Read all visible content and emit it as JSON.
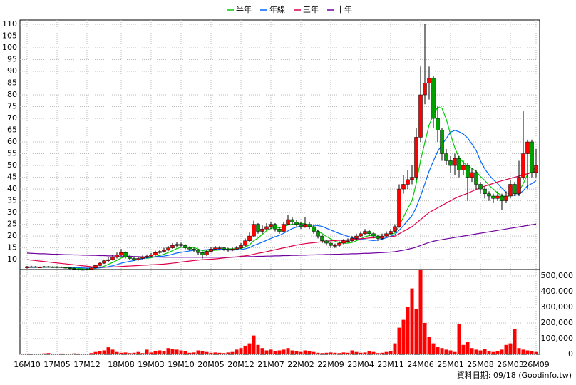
{
  "chart_data": {
    "type": "candlestick",
    "categories": [
      "16M10",
      null,
      null,
      null,
      null,
      null,
      null,
      "17M05",
      null,
      null,
      null,
      null,
      null,
      null,
      "17M12",
      null,
      null,
      null,
      null,
      null,
      null,
      null,
      "18M08",
      null,
      null,
      null,
      null,
      null,
      null,
      "19M03",
      null,
      null,
      null,
      null,
      null,
      null,
      "19M10",
      null,
      null,
      null,
      null,
      null,
      null,
      "20M05",
      null,
      null,
      null,
      null,
      null,
      null,
      "20M12",
      null,
      null,
      null,
      null,
      null,
      null,
      "21M07",
      null,
      null,
      null,
      null,
      null,
      null,
      "22M02",
      null,
      null,
      null,
      null,
      null,
      null,
      "22M09",
      null,
      null,
      null,
      null,
      null,
      null,
      "23M04",
      null,
      null,
      null,
      null,
      null,
      null,
      "23M11",
      null,
      null,
      null,
      null,
      null,
      null,
      "24M06",
      null,
      null,
      null,
      null,
      null,
      null,
      "25M01",
      null,
      null,
      null,
      null,
      null,
      null,
      "25M08",
      null,
      null,
      null,
      null,
      null,
      null,
      "26M03",
      null,
      null,
      null,
      null,
      null,
      "26M09"
    ],
    "open": [
      6.5,
      7,
      7,
      6.8,
      6.8,
      7,
      6.9,
      6.8,
      6.9,
      6.7,
      6.5,
      6.3,
      6,
      5.8,
      5.8,
      5.9,
      6.5,
      7.5,
      8.5,
      9.5,
      10,
      11,
      12,
      13,
      11,
      10.5,
      10,
      10.5,
      11,
      11.5,
      12,
      13,
      13.5,
      14,
      15,
      16,
      16.5,
      16,
      15,
      14.5,
      14,
      13,
      12,
      13.5,
      14.5,
      15,
      15,
      14.5,
      14,
      14.5,
      15,
      16,
      18,
      20,
      25,
      22,
      23,
      24,
      25,
      23,
      22,
      25,
      27,
      26,
      25,
      24,
      25,
      24,
      22,
      20,
      18,
      17,
      16,
      16,
      17,
      18,
      18,
      19,
      20,
      21,
      22,
      21,
      20,
      19,
      20,
      21,
      22,
      24,
      40,
      42,
      44,
      45,
      62,
      80,
      85,
      87,
      70,
      65,
      55,
      52,
      50,
      53,
      48,
      50,
      45,
      47,
      42,
      40,
      38,
      37,
      36,
      37,
      35,
      37,
      42,
      38,
      45,
      55,
      60,
      47
    ],
    "high": [
      7.3,
      7.4,
      7.3,
      7.1,
      7.3,
      7.3,
      7.2,
      7.2,
      7.1,
      7,
      6.8,
      6.6,
      6.2,
      6.2,
      6.3,
      6.9,
      7.9,
      9,
      10,
      11,
      12,
      13,
      14.5,
      13.5,
      11.8,
      11,
      11.2,
      11.8,
      12.2,
      12.8,
      13.8,
      14.2,
      15,
      15.8,
      17,
      17.5,
      17.2,
      16.5,
      15.6,
      15,
      14.5,
      13.5,
      14,
      15.2,
      15.8,
      15.8,
      15.5,
      15,
      15.2,
      15.8,
      17,
      19,
      21.5,
      26.5,
      25.5,
      24.5,
      25.5,
      26,
      25.5,
      24,
      26,
      29,
      28,
      27,
      25.8,
      28,
      25.8,
      24.5,
      22.5,
      20.5,
      18.5,
      17.5,
      16.8,
      17.8,
      18.8,
      19,
      20,
      21,
      22,
      23,
      22.5,
      21.5,
      20.5,
      21,
      22,
      23,
      25,
      42,
      46,
      48,
      50,
      66,
      92,
      110,
      92,
      88,
      75,
      66,
      57,
      54,
      55,
      54,
      52,
      51,
      49,
      48,
      43,
      41,
      39,
      38,
      39,
      38,
      39,
      44,
      43,
      52,
      73,
      61,
      61,
      57
    ],
    "low": [
      6.2,
      6.7,
      6.5,
      6.5,
      6.6,
      6.6,
      6.5,
      6.5,
      6.4,
      6.2,
      6,
      5.7,
      5.4,
      5.5,
      5.5,
      5.7,
      6.3,
      7.2,
      8.2,
      9,
      9.6,
      10.5,
      11.5,
      10.5,
      9.8,
      9.5,
      9.6,
      10.2,
      10.6,
      11,
      11.6,
      12.5,
      13,
      13.6,
      14.6,
      15.5,
      15.2,
      14.4,
      13.8,
      13.4,
      12,
      10.5,
      11.5,
      13,
      14,
      14.3,
      13.8,
      13.4,
      13.6,
      14,
      14.6,
      15.5,
      17.5,
      19.5,
      21,
      21,
      22.5,
      23,
      22,
      21,
      21.5,
      24.5,
      25,
      24,
      23,
      23.5,
      23,
      21,
      19,
      17,
      16,
      15,
      15,
      15.5,
      16.5,
      17.2,
      17.5,
      18.5,
      19.5,
      20.5,
      20,
      19,
      18,
      18.5,
      19.5,
      20.5,
      21.5,
      23.5,
      38,
      40,
      42,
      44,
      60,
      76,
      78,
      66,
      60,
      52,
      50,
      47,
      46,
      45,
      46,
      35,
      43,
      40,
      38,
      36,
      35,
      34,
      35,
      31,
      34,
      36,
      37,
      37,
      44,
      40,
      45,
      45
    ],
    "close": [
      7,
      7,
      6.8,
      6.8,
      7,
      6.9,
      6.8,
      6.9,
      6.7,
      6.5,
      6.3,
      6,
      5.8,
      5.8,
      5.9,
      6.5,
      7.5,
      8.5,
      9.5,
      10,
      11,
      12,
      13,
      11,
      10.5,
      10,
      10.5,
      11,
      11.5,
      12,
      13,
      13.5,
      14,
      15,
      16,
      16.5,
      16,
      15,
      14.5,
      14,
      13,
      12,
      13.5,
      14.5,
      15,
      15,
      14.5,
      14,
      14.5,
      15,
      16,
      18,
      20,
      25,
      22,
      23,
      24,
      25,
      23,
      22,
      25,
      27,
      26,
      25,
      24,
      25,
      24,
      22,
      20,
      18,
      17,
      16,
      16,
      17,
      18,
      18,
      19,
      20,
      21,
      22,
      21,
      20,
      19,
      20,
      21,
      22,
      24,
      40,
      42,
      44,
      45,
      62,
      80,
      85,
      87,
      70,
      65,
      55,
      52,
      50,
      53,
      48,
      50,
      45,
      47,
      42,
      40,
      38,
      37,
      36,
      37,
      35,
      37,
      42,
      38,
      45,
      55,
      60,
      47,
      50
    ],
    "up_color": "#ff0000",
    "down_color": "#00a000",
    "ylim": [
      5.8,
      111.8
    ],
    "yticks": [
      10,
      15,
      20,
      25,
      30,
      35,
      40,
      45,
      50,
      55,
      60,
      65,
      70,
      75,
      80,
      85,
      90,
      95,
      100,
      105,
      110
    ],
    "volume": {
      "color": "#ff0000",
      "ylim": [
        0,
        541000
      ],
      "yticks": [
        0,
        {
          "value": 100000,
          "label": "100,000"
        },
        {
          "value": 200000,
          "label": "200,000"
        },
        {
          "value": 300000,
          "label": "300,000"
        },
        {
          "value": 400000,
          "label": "400,000"
        },
        {
          "value": 500000,
          "label": "500,000"
        }
      ],
      "values": [
        5000,
        3000,
        4000,
        3000,
        6000,
        8000,
        3000,
        4000,
        5000,
        3000,
        4000,
        6000,
        5000,
        4000,
        3000,
        8000,
        15000,
        20000,
        25000,
        45000,
        30000,
        15000,
        10000,
        12000,
        8000,
        10000,
        15000,
        8000,
        30000,
        12000,
        20000,
        25000,
        20000,
        40000,
        35000,
        30000,
        25000,
        20000,
        10000,
        12000,
        25000,
        20000,
        15000,
        10000,
        12000,
        10000,
        8000,
        12000,
        15000,
        30000,
        40000,
        55000,
        70000,
        120000,
        60000,
        40000,
        25000,
        30000,
        20000,
        25000,
        30000,
        40000,
        25000,
        20000,
        15000,
        25000,
        20000,
        15000,
        10000,
        8000,
        10000,
        12000,
        10000,
        8000,
        12000,
        10000,
        25000,
        15000,
        10000,
        12000,
        20000,
        15000,
        8000,
        10000,
        15000,
        20000,
        70000,
        170000,
        220000,
        300000,
        420000,
        290000,
        540000,
        200000,
        110000,
        70000,
        50000,
        40000,
        30000,
        25000,
        15000,
        195000,
        60000,
        80000,
        40000,
        30000,
        25000,
        35000,
        20000,
        15000,
        20000,
        30000,
        60000,
        70000,
        160000,
        40000,
        30000,
        25000,
        20000,
        15000
      ]
    },
    "series": [
      {
        "name": "半年",
        "color": "#00cc00",
        "values": [
          6.8,
          6.8,
          6.8,
          6.8,
          6.9,
          6.9,
          6.9,
          6.9,
          6.8,
          6.8,
          6.7,
          6.5,
          6.3,
          6.1,
          6,
          6.1,
          6.3,
          6.7,
          7.2,
          8,
          8.8,
          9.7,
          10.7,
          11.3,
          11.5,
          11.3,
          11.1,
          10.8,
          10.6,
          10.8,
          11.3,
          11.8,
          12.3,
          13,
          13.8,
          14.7,
          15.2,
          15.4,
          15.3,
          15.1,
          14.5,
          13.8,
          13.6,
          13.7,
          14,
          14.1,
          14.3,
          14.6,
          14.6,
          14.7,
          14.8,
          15.3,
          16.3,
          18,
          19.2,
          20.7,
          22.3,
          23.2,
          23.7,
          23.5,
          24,
          24.8,
          25,
          25.2,
          25.4,
          25.2,
          24.5,
          23.3,
          22.2,
          21,
          19.8,
          18.8,
          17.8,
          17.3,
          17,
          17,
          17.3,
          18,
          18.8,
          19.7,
          20.2,
          20.5,
          20.5,
          20.5,
          20.5,
          20.7,
          21.3,
          24.4,
          28,
          31.7,
          35,
          42.5,
          52.2,
          59.7,
          67.2,
          71.5,
          74.8,
          74.3,
          69.7,
          63.2,
          57.5,
          53.3,
          51.3,
          49.7,
          48.8,
          47.5,
          45.3,
          43.7,
          41.5,
          40,
          38.3,
          37.2,
          36.5,
          37.3,
          37.5,
          39,
          42.3,
          46.2,
          47.8,
          49.2
        ]
      },
      {
        "name": "年線",
        "color": "#0066ff",
        "values": [
          6.7,
          6.7,
          6.7,
          6.8,
          6.8,
          6.8,
          6.8,
          6.8,
          6.8,
          6.8,
          6.8,
          6.7,
          6.6,
          6.5,
          6.4,
          6.4,
          6.4,
          6.5,
          6.7,
          7,
          7.4,
          7.9,
          8.5,
          8.9,
          9.3,
          9.6,
          10,
          10.4,
          10.8,
          11.1,
          11.2,
          11.4,
          11.5,
          11.8,
          12.3,
          12.8,
          13.1,
          13.4,
          13.7,
          14,
          14.1,
          14.1,
          14.2,
          14.4,
          14.4,
          14.4,
          14.3,
          14.2,
          14.1,
          14.2,
          14.3,
          14.6,
          15.1,
          16,
          16.7,
          17.4,
          18.2,
          19,
          19.7,
          20.3,
          21.2,
          22.2,
          23.2,
          23.8,
          24.3,
          24.8,
          24.9,
          24.6,
          24.4,
          24.1,
          23.3,
          22.6,
          21.8,
          21.1,
          20.5,
          19.9,
          19.3,
          18.8,
          18.6,
          18.5,
          18.3,
          18.1,
          18.3,
          18.7,
          19.3,
          19.9,
          20.6,
          22.5,
          24.5,
          26.6,
          28.7,
          32.2,
          37,
          42.2,
          47.6,
          51.9,
          56,
          58.8,
          61.5,
          64.1,
          64.9,
          64.3,
          63.3,
          61.7,
          59.1,
          56.4,
          52,
          48.6,
          46,
          44,
          42.3,
          40.4,
          38.5,
          37.8,
          37.2,
          37.8,
          39.3,
          41.4,
          42.3,
          43.5
        ]
      },
      {
        "name": "三年",
        "color": "#e0004a",
        "values": [
          10,
          9.8,
          9.6,
          9.4,
          9.2,
          9,
          8.8,
          8.6,
          8.4,
          8.2,
          8,
          7.8,
          7.6,
          7.4,
          7.2,
          7,
          6.9,
          6.8,
          6.8,
          6.8,
          6.9,
          7,
          7.1,
          7.2,
          7.3,
          7.4,
          7.5,
          7.6,
          7.7,
          7.8,
          7.9,
          8,
          8.1,
          8.3,
          8.5,
          8.7,
          9,
          9.2,
          9.4,
          9.6,
          9.8,
          10,
          10.1,
          10.2,
          10.3,
          10.5,
          10.7,
          10.9,
          11,
          11.2,
          11.4,
          11.6,
          11.9,
          12.3,
          12.7,
          13,
          13.4,
          13.8,
          14.2,
          14.6,
          15,
          15.4,
          15.8,
          16.2,
          16.5,
          16.8,
          17,
          17.2,
          17.4,
          17.6,
          17.8,
          18,
          18.1,
          18.2,
          18.3,
          18.4,
          18.5,
          18.7,
          18.9,
          19,
          19.2,
          19.3,
          19.4,
          19.5,
          19.6,
          19.7,
          20,
          21,
          22,
          23,
          24,
          25.5,
          27,
          28.5,
          30,
          31,
          32,
          33,
          34,
          35,
          36,
          36.8,
          37.5,
          38.2,
          39,
          39.8,
          40.5,
          41.2,
          41.8,
          42.4,
          43,
          43.5,
          44,
          44.5,
          45,
          45.5,
          46,
          46.5,
          47,
          47.5
        ]
      },
      {
        "name": "十年",
        "color": "#7000a0",
        "values": [
          12.8,
          12.7,
          12.6,
          12.5,
          12.5,
          12.4,
          12.3,
          12.3,
          12.2,
          12.1,
          12.1,
          12,
          12,
          11.9,
          11.9,
          11.8,
          11.8,
          11.7,
          11.7,
          11.6,
          11.6,
          11.5,
          11.5,
          11.4,
          11.4,
          11.3,
          11.3,
          11.2,
          11.2,
          11.1,
          11.1,
          11.1,
          11,
          11,
          11,
          11,
          11,
          11,
          11,
          11,
          11,
          11,
          11,
          11,
          11,
          11,
          11,
          11,
          11.1,
          11.1,
          11.2,
          11.2,
          11.3,
          11.3,
          11.4,
          11.4,
          11.5,
          11.5,
          11.6,
          11.6,
          11.7,
          11.7,
          11.8,
          11.8,
          11.9,
          11.9,
          12,
          12,
          12.1,
          12.1,
          12.2,
          12.2,
          12.3,
          12.3,
          12.4,
          12.4,
          12.5,
          12.5,
          12.6,
          12.7,
          12.7,
          12.8,
          12.9,
          13,
          13.1,
          13.2,
          13.4,
          13.7,
          14,
          14.4,
          14.8,
          15.3,
          16,
          16.7,
          17.3,
          17.8,
          18.2,
          18.5,
          18.8,
          19.1,
          19.4,
          19.7,
          20,
          20.3,
          20.6,
          20.9,
          21.2,
          21.5,
          21.8,
          22.1,
          22.4,
          22.7,
          23,
          23.3,
          23.6,
          23.9,
          24.2,
          24.5,
          24.8,
          25.1
        ]
      }
    ],
    "grid": true,
    "source": "資料日期: 09/18 (Goodinfo.tw)"
  }
}
